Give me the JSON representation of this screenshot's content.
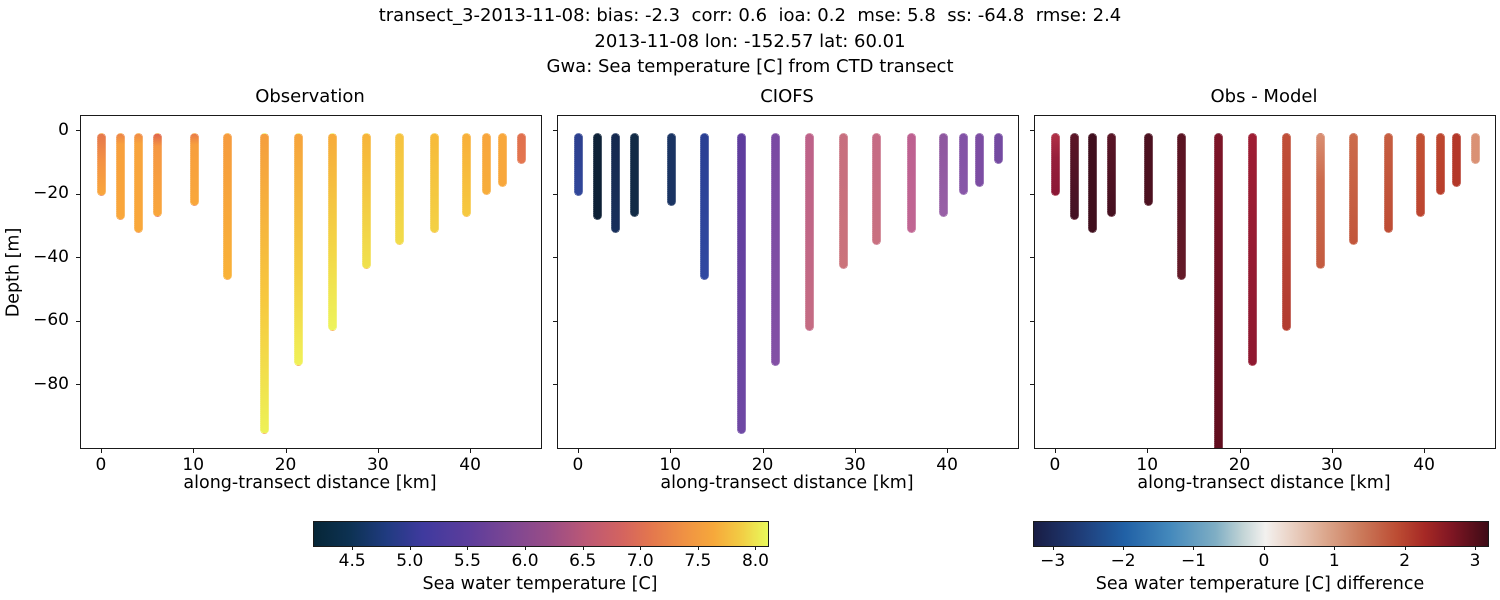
{
  "suptitle": {
    "line1": "transect_3-2013-11-08: bias: -2.3  corr: 0.6  ioa: 0.2  mse: 5.8  ss: -64.8  rmse: 2.4",
    "line2": "2013-11-08 lon: -152.57 lat: 60.01",
    "line3": "Gwa: Sea temperature [C] from CTD transect"
  },
  "ylabel": "Depth [m]",
  "xlabel": "along-transect distance [km]",
  "panels": [
    {
      "key": "obs",
      "title": "Observation"
    },
    {
      "key": "model",
      "title": "CIOFS"
    },
    {
      "key": "diff",
      "title": "Obs - Model"
    }
  ],
  "chart_data": {
    "type": "scatter",
    "title": "Gwa: Sea temperature [C] from CTD transect",
    "xlabel": "along-transect distance [km]",
    "ylabel": "Depth [m]",
    "xlim": [
      -2.27,
      47.57
    ],
    "ylim": [
      4.75,
      -99.75
    ],
    "xticks": {
      "values": [
        0,
        10,
        20,
        30,
        40
      ],
      "labels": [
        "0",
        "10",
        "20",
        "30",
        "40"
      ]
    },
    "yticks": {
      "values": [
        0,
        -20,
        -40,
        -60,
        -80
      ],
      "labels": [
        "0",
        "−20",
        "−40",
        "−60",
        "−80"
      ]
    },
    "stations_km": [
      0,
      2,
      4,
      6,
      10,
      13.6,
      17.6,
      21.3,
      25,
      28.7,
      32.2,
      36,
      39.5,
      41.7,
      43.4,
      45.5
    ],
    "profile_top_m": -0.5,
    "profile_bottom_m": [
      -20.5,
      -28,
      -32,
      -27,
      -23.5,
      -47,
      -95.5,
      -74,
      -63,
      -43.5,
      -36,
      -32,
      -27,
      -20,
      -17.5,
      -10.5
    ],
    "series": [
      {
        "name": "Observation",
        "panel": "obs",
        "surface_temp_C": [
          6.9,
          7.2,
          7.3,
          6.8,
          7.0,
          7.45,
          7.45,
          7.5,
          7.55,
          7.6,
          7.7,
          7.65,
          7.55,
          7.5,
          7.55,
          6.9
        ],
        "bottom_temp_C": [
          7.5,
          7.55,
          7.55,
          7.5,
          7.55,
          7.6,
          8.1,
          8.1,
          8.1,
          8.0,
          7.95,
          7.9,
          7.8,
          7.55,
          7.55,
          6.9
        ]
      },
      {
        "name": "CIOFS",
        "panel": "model",
        "surface_temp_C": [
          4.95,
          4.35,
          4.5,
          4.45,
          4.65,
          4.95,
          5.45,
          5.65,
          6.3,
          6.45,
          6.4,
          6.3,
          5.85,
          5.75,
          5.7,
          5.6
        ],
        "bottom_temp_C": [
          5.0,
          4.35,
          4.55,
          4.45,
          4.65,
          5.0,
          5.55,
          5.7,
          6.35,
          6.45,
          6.4,
          6.3,
          5.9,
          5.75,
          5.7,
          5.6
        ]
      },
      {
        "name": "Obs - Model",
        "panel": "diff",
        "surface_diff_C": [
          2.6,
          3.0,
          3.15,
          3.0,
          3.05,
          3.0,
          2.9,
          2.75,
          2.05,
          1.2,
          1.7,
          1.85,
          2.0,
          2.15,
          2.3,
          1.15
        ],
        "bottom_diff_C": [
          2.85,
          3.1,
          3.15,
          3.1,
          3.05,
          2.95,
          3.0,
          2.8,
          2.2,
          1.6,
          1.8,
          1.95,
          2.05,
          2.2,
          2.3,
          1.15
        ]
      }
    ],
    "colorbars": [
      {
        "label": "Sea water temperature [C]",
        "range": [
          4.16,
          8.1
        ],
        "tick_values": [
          4.5,
          5.0,
          5.5,
          6.0,
          6.5,
          7.0,
          7.5,
          8.0
        ],
        "tick_labels": [
          "4.5",
          "5.0",
          "5.5",
          "6.0",
          "6.5",
          "7.0",
          "7.5",
          "8.0"
        ]
      },
      {
        "label": "Sea water temperature [C] difference",
        "range": [
          -3.28,
          3.17
        ],
        "tick_values": [
          -3,
          -2,
          -1,
          0,
          1,
          2,
          3
        ],
        "tick_labels": [
          "−3",
          "−2",
          "−1",
          "0",
          "1",
          "2",
          "3"
        ]
      }
    ],
    "legend": null,
    "grid": false
  },
  "style": {
    "spine_color": "#1a1a1a",
    "diff_floor_station_index": 6,
    "colorbar_gradients": {
      "temperature": [
        [
          0,
          "#062637"
        ],
        [
          8,
          "#0D3253"
        ],
        [
          16,
          "#203B80"
        ],
        [
          24,
          "#3F3A9E"
        ],
        [
          34,
          "#5C3D9C"
        ],
        [
          44,
          "#7F4792"
        ],
        [
          52,
          "#9A4D86"
        ],
        [
          60,
          "#BC5875"
        ],
        [
          68,
          "#D4645F"
        ],
        [
          74,
          "#E3764E"
        ],
        [
          82,
          "#F09343"
        ],
        [
          88,
          "#F6A83B"
        ],
        [
          94,
          "#F2CC44"
        ],
        [
          100,
          "#E9FA5B"
        ]
      ],
      "difference": [
        [
          0,
          "#191D44"
        ],
        [
          10,
          "#1F3C77"
        ],
        [
          20,
          "#2161A6"
        ],
        [
          30,
          "#4489BC"
        ],
        [
          40,
          "#7FAEC4"
        ],
        [
          46,
          "#C2D4D6"
        ],
        [
          51,
          "#F3F1EF"
        ],
        [
          56,
          "#EBD5C9"
        ],
        [
          64,
          "#DCA88E"
        ],
        [
          72,
          "#CB7A5B"
        ],
        [
          80,
          "#BC4C33"
        ],
        [
          86,
          "#A62925"
        ],
        [
          92,
          "#7F1623"
        ],
        [
          100,
          "#3E0B16"
        ]
      ]
    },
    "bar_colors": {
      "obs": [
        [
          [
            0,
            "#E5784C"
          ],
          [
            45,
            "#F49244"
          ],
          [
            100,
            "#F9A63C"
          ]
        ],
        [
          [
            0,
            "#EC8448"
          ],
          [
            12,
            "#F8A03D"
          ],
          [
            100,
            "#F9A73B"
          ]
        ],
        [
          [
            0,
            "#F08B46"
          ],
          [
            10,
            "#F8A43C"
          ],
          [
            100,
            "#F9A83B"
          ]
        ],
        [
          [
            0,
            "#DF654B"
          ],
          [
            15,
            "#F59743"
          ],
          [
            100,
            "#F9A63C"
          ]
        ],
        [
          [
            0,
            "#E87B48"
          ],
          [
            15,
            "#F79F3D"
          ],
          [
            100,
            "#F9A73B"
          ]
        ],
        [
          [
            0,
            "#F69B3E"
          ],
          [
            100,
            "#F9B238"
          ]
        ],
        [
          [
            0,
            "#F59E3D"
          ],
          [
            55,
            "#F7C83E"
          ],
          [
            100,
            "#EDF156"
          ]
        ],
        [
          [
            0,
            "#F6A33C"
          ],
          [
            60,
            "#F5CE42"
          ],
          [
            100,
            "#F0F158"
          ]
        ],
        [
          [
            0,
            "#F7AB3A"
          ],
          [
            60,
            "#F3D746"
          ],
          [
            100,
            "#EDF45C"
          ]
        ],
        [
          [
            0,
            "#F7B439"
          ],
          [
            100,
            "#F0E14D"
          ]
        ],
        [
          [
            0,
            "#F6C23F"
          ],
          [
            100,
            "#F1DC4A"
          ]
        ],
        [
          [
            0,
            "#F7BA39"
          ],
          [
            100,
            "#F3D145"
          ]
        ],
        [
          [
            0,
            "#F8AF3A"
          ],
          [
            100,
            "#F6C940"
          ]
        ],
        [
          [
            0,
            "#F8A53C"
          ],
          [
            100,
            "#F7AD3B"
          ]
        ],
        [
          [
            0,
            "#F8A73B"
          ],
          [
            100,
            "#F8A73B"
          ]
        ],
        [
          [
            0,
            "#E0704E"
          ],
          [
            100,
            "#E4764F"
          ]
        ]
      ],
      "model": [
        [
          [
            0,
            "#2C3F8E"
          ],
          [
            100,
            "#31479A"
          ]
        ],
        [
          [
            0,
            "#0E2238"
          ],
          [
            100,
            "#0D2035"
          ]
        ],
        [
          [
            0,
            "#15294F"
          ],
          [
            100,
            "#182F5B"
          ]
        ],
        [
          [
            0,
            "#122B46"
          ],
          [
            100,
            "#122B46"
          ]
        ],
        [
          [
            0,
            "#1A3463"
          ],
          [
            100,
            "#1A3463"
          ]
        ],
        [
          [
            0,
            "#2A3F93"
          ],
          [
            100,
            "#3049A1"
          ]
        ],
        [
          [
            0,
            "#5E3C9E"
          ],
          [
            100,
            "#6F48A4"
          ]
        ],
        [
          [
            0,
            "#7A4AA3"
          ],
          [
            100,
            "#8350A5"
          ]
        ],
        [
          [
            0,
            "#BD6189"
          ],
          [
            100,
            "#C56C83"
          ]
        ],
        [
          [
            0,
            "#C76F7F"
          ],
          [
            100,
            "#CB737B"
          ]
        ],
        [
          [
            0,
            "#C66B85"
          ],
          [
            100,
            "#C97080"
          ]
        ],
        [
          [
            0,
            "#BD6090"
          ],
          [
            100,
            "#C16693"
          ]
        ],
        [
          [
            0,
            "#8E579F"
          ],
          [
            100,
            "#9860A6"
          ]
        ],
        [
          [
            0,
            "#8252A6"
          ],
          [
            100,
            "#8857A8"
          ]
        ],
        [
          [
            0,
            "#7C4DA3"
          ],
          [
            100,
            "#7C4DA3"
          ]
        ],
        [
          [
            0,
            "#744AA1"
          ],
          [
            100,
            "#744AA1"
          ]
        ]
      ],
      "diff": [
        [
          [
            0,
            "#B13046"
          ],
          [
            40,
            "#96203B"
          ],
          [
            100,
            "#8A1735"
          ]
        ],
        [
          [
            0,
            "#5C1527"
          ],
          [
            100,
            "#431123"
          ]
        ],
        [
          [
            0,
            "#400E1D"
          ],
          [
            100,
            "#400E1D"
          ]
        ],
        [
          [
            0,
            "#5A1526"
          ],
          [
            100,
            "#451020"
          ]
        ],
        [
          [
            0,
            "#4C1120"
          ],
          [
            100,
            "#4C1120"
          ]
        ],
        [
          [
            0,
            "#5A1322"
          ],
          [
            100,
            "#641A28"
          ]
        ],
        [
          [
            0,
            "#7D1528"
          ],
          [
            100,
            "#600D1E"
          ]
        ],
        [
          [
            0,
            "#9E1D33"
          ],
          [
            100,
            "#8F1830"
          ]
        ],
        [
          [
            0,
            "#C04F38"
          ],
          [
            100,
            "#B23B30"
          ]
        ],
        [
          [
            0,
            "#D98E72"
          ],
          [
            35,
            "#CC6B4D"
          ],
          [
            100,
            "#C45B40"
          ]
        ],
        [
          [
            0,
            "#CC6C4C"
          ],
          [
            100,
            "#C2563B"
          ]
        ],
        [
          [
            0,
            "#C65E41"
          ],
          [
            100,
            "#BE4D35"
          ]
        ],
        [
          [
            0,
            "#C35134"
          ],
          [
            100,
            "#BC4530"
          ]
        ],
        [
          [
            0,
            "#BE472F"
          ],
          [
            100,
            "#B83E2B"
          ]
        ],
        [
          [
            0,
            "#B43829"
          ],
          [
            100,
            "#B43829"
          ]
        ],
        [
          [
            0,
            "#DA9174"
          ],
          [
            100,
            "#DA9174"
          ]
        ]
      ]
    }
  }
}
